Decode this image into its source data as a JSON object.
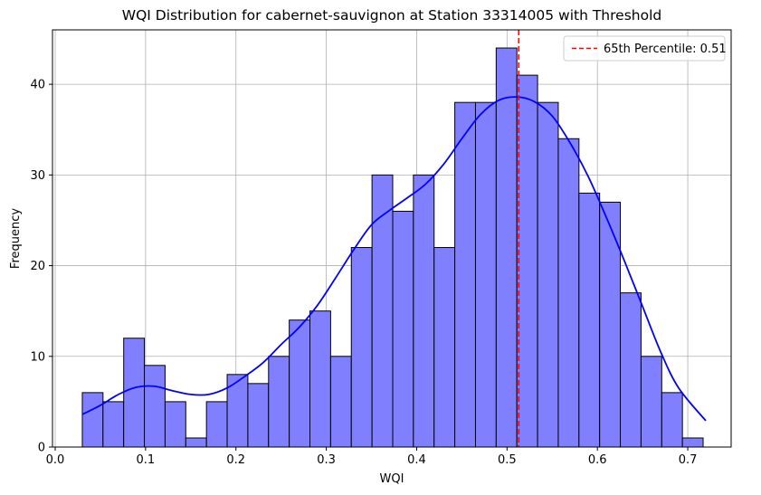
{
  "chart_data": {
    "type": "bar",
    "title": "WQI Distribution for cabernet-sauvignon at Station 33314005 with Threshold",
    "xlabel": "WQI",
    "ylabel": "Frequency",
    "xlim": [
      -0.003,
      0.748
    ],
    "ylim": [
      0,
      46
    ],
    "xticks": [
      0.0,
      0.1,
      0.2,
      0.3,
      0.4,
      0.5,
      0.6,
      0.7
    ],
    "xtick_labels": [
      "0.0",
      "0.1",
      "0.2",
      "0.3",
      "0.4",
      "0.5",
      "0.6",
      "0.7"
    ],
    "yticks": [
      0,
      10,
      20,
      30,
      40
    ],
    "ytick_labels": [
      "0",
      "10",
      "20",
      "30",
      "40"
    ],
    "grid": true,
    "legend_position": "top-right",
    "bin_start": 0.03,
    "bin_width": 0.0229,
    "counts": [
      6,
      5,
      12,
      9,
      5,
      1,
      5,
      8,
      7,
      10,
      14,
      15,
      10,
      22,
      30,
      26,
      30,
      22,
      38,
      38,
      44,
      41,
      38,
      34,
      28,
      27,
      17,
      10,
      6,
      1
    ],
    "kde": {
      "x": [
        0.03,
        0.05,
        0.07,
        0.09,
        0.11,
        0.13,
        0.15,
        0.17,
        0.19,
        0.21,
        0.23,
        0.25,
        0.27,
        0.29,
        0.31,
        0.33,
        0.35,
        0.37,
        0.39,
        0.41,
        0.43,
        0.45,
        0.47,
        0.49,
        0.51,
        0.53,
        0.55,
        0.57,
        0.59,
        0.61,
        0.63,
        0.65,
        0.67,
        0.69,
        0.72
      ],
      "y": [
        3.6,
        4.6,
        5.8,
        6.6,
        6.7,
        6.2,
        5.8,
        5.8,
        6.5,
        7.8,
        9.3,
        11.3,
        13.2,
        15.6,
        18.6,
        21.7,
        24.5,
        26.1,
        27.5,
        29.0,
        31.2,
        34.0,
        36.6,
        38.2,
        38.6,
        38.1,
        36.5,
        33.5,
        29.8,
        25.3,
        20.5,
        15.5,
        10.5,
        6.5,
        2.9
      ]
    },
    "threshold": {
      "value": 0.513,
      "label": "65th Percentile: 0.51",
      "color": "#ff0000"
    },
    "colors": {
      "bar_fill": "#8080ff",
      "bar_edge": "#000000",
      "kde_line": "#0000ff",
      "grid": "#b0b0b0"
    }
  }
}
